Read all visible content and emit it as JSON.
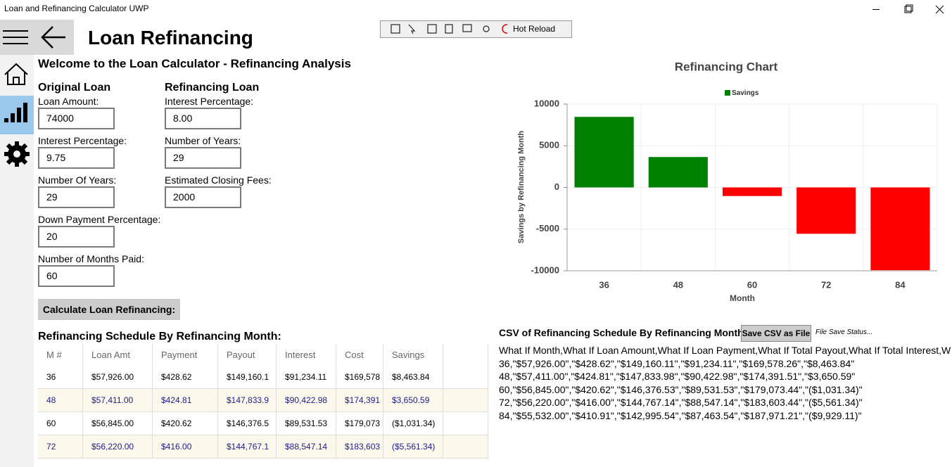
{
  "window": {
    "title": "Loan and Refinancing Calculator UWP"
  },
  "toolbar": {
    "hot_reload": "Hot Reload"
  },
  "page": {
    "title": "Loan Refinancing",
    "welcome": "Welcome to the Loan Calculator - Refinancing Analysis"
  },
  "original_loan": {
    "heading": "Original Loan",
    "fields": [
      {
        "label": "Loan Amount:",
        "value": "74000"
      },
      {
        "label": "Interest Percentage:",
        "value": "9.75"
      },
      {
        "label": "Number Of Years:",
        "value": "29"
      },
      {
        "label": "Down Payment Percentage:",
        "value": "20"
      },
      {
        "label": "Number of Months Paid:",
        "value": "60"
      }
    ]
  },
  "refinancing_loan": {
    "heading": "Refinancing Loan",
    "fields": [
      {
        "label": "Interest Percentage:",
        "value": "8.00"
      },
      {
        "label": "Number of Years:",
        "value": "29"
      },
      {
        "label": "Estimated Closing Fees:",
        "value": "2000"
      }
    ]
  },
  "calculate_button": "Calculate Loan Refinancing:",
  "schedule": {
    "title": "Refinancing Schedule By Refinancing Month:",
    "columns": [
      "M #",
      "Loan Amt",
      "Payment",
      "Payout",
      "Interest",
      "Cost",
      "Savings"
    ],
    "rows": [
      [
        "36",
        "$57,926.00",
        "$428.62",
        "$149,160.1",
        "$91,234.11",
        "$169,578",
        "$8,463.84"
      ],
      [
        "48",
        "$57,411.00",
        "$424.81",
        "$147,833.9",
        "$90,422.98",
        "$174,391",
        "$3,650.59"
      ],
      [
        "60",
        "$56,845.00",
        "$420.62",
        "$146,376.5",
        "$89,531.53",
        "$179,073",
        "($1,031.34)"
      ],
      [
        "72",
        "$56,220.00",
        "$416.00",
        "$144,767.1",
        "$88,547.14",
        "$183,603",
        "($5,561.34)"
      ]
    ]
  },
  "chart_data": {
    "type": "bar",
    "title": "Refinancing Chart",
    "x_label": "Month",
    "y_label": "Savings by Refinancing Month",
    "categories": [
      "36",
      "48",
      "60",
      "72",
      "84"
    ],
    "series": [
      {
        "name": "Savings",
        "color": "#008000",
        "values": [
          8463.84,
          3650.59,
          -1031.34,
          -5561.34,
          -9929.11
        ]
      }
    ],
    "bar_colors": [
      "#008000",
      "#008000",
      "#ff0000",
      "#ff0000",
      "#ff0000"
    ],
    "ylim": [
      -10000,
      10000
    ],
    "yticks": [
      -10000,
      -5000,
      0,
      5000,
      10000
    ],
    "grid": true,
    "legend": "top"
  },
  "csv": {
    "title": "CSV of Refinancing Schedule By Refinancing Month",
    "save_button": "Save CSV as File",
    "status": "File Save Status...",
    "lines": [
      "What If Month,What If Loan Amount,What If Loan Payment,What If Total Payout,What If Total Interest,W",
      "36,\"$57,926.00\",\"$428.62\",\"$149,160.11\",\"$91,234.11\",\"$169,578.26\",\"$8,463.84\"",
      "48,\"$57,411.00\",\"$424.81\",\"$147,833.98\",\"$90,422.98\",\"$174,391.51\",\"$3,650.59\"",
      "60,\"$56,845.00\",\"$420.62\",\"$146,376.53\",\"$89,531.53\",\"$179,073.44\",\"($1,031.34)\"",
      "72,\"$56,220.00\",\"$416.00\",\"$144,767.14\",\"$88,547.14\",\"$183,603.44\",\"($5,561.34)\"",
      "84,\"$55,532.00\",\"$410.91\",\"$142,995.54\",\"$87,463.54\",\"$187,971.21\",\"($9,929.11)\""
    ]
  }
}
